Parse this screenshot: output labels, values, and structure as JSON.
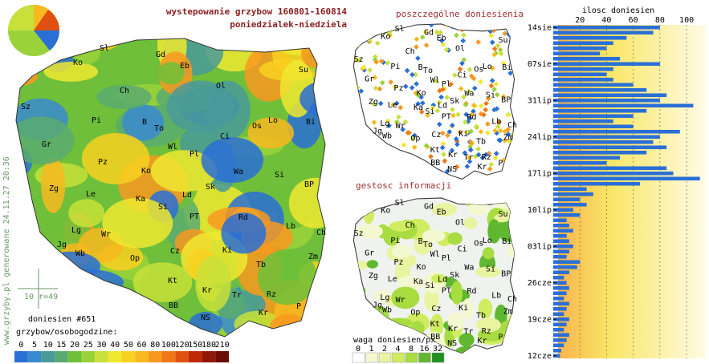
{
  "title": [
    "wystepowanie grzybow 160801-160814",
    "poniedzialek-niedziela"
  ],
  "panel_titles": {
    "points": "poszczególne doniesienia",
    "density": "gestosc informacji"
  },
  "map_labels": [
    "Sl",
    "Gd",
    "Ko",
    "Eb",
    "Ch",
    "Ol",
    "Su",
    "Sz",
    "Pi",
    "B",
    "To",
    "Lo",
    "Bi",
    "Gr",
    "Wl",
    "Pl",
    "Ci",
    "Os",
    "Pz",
    "Ko",
    "Wa",
    "Si",
    "Zg",
    "Le",
    "Ka",
    "Ld",
    "Sk",
    "BP",
    "Si",
    "PT",
    "Rd",
    "Lb",
    "Lg",
    "Wr",
    "Ch",
    "Jg",
    "Wb",
    "Op",
    "Cz",
    "Ki",
    "Zm",
    "Tb",
    "Kt",
    "Kr",
    "Tr",
    "Rz",
    "P",
    "BB",
    "NS",
    "Kr"
  ],
  "report_count": "doniesien #651",
  "scale_bar": "10 r=49",
  "side_text": "www.grzyby.pl generowane 24.11.27 20:36",
  "scale_title": "grzybow/osobogodzine:",
  "scale": [
    0,
    5,
    10,
    15,
    20,
    25,
    30,
    40,
    50,
    60,
    80,
    100,
    120,
    150,
    180,
    210
  ],
  "scale_colors": [
    "#2a6fd6",
    "#3a8ad0",
    "#4a9a9a",
    "#5aaa70",
    "#6fbf3a",
    "#9ad23a",
    "#c8e03a",
    "#f0e830",
    "#f8d020",
    "#f8b820",
    "#f89820",
    "#f07818",
    "#e05010",
    "#c02808",
    "#901808",
    "#6a0c04"
  ],
  "density_legend_title": "waga doniesien/px",
  "density_scale": [
    0,
    1,
    2,
    4,
    8,
    16,
    32
  ],
  "density_colors": [
    "#ffffff",
    "#f4f8d0",
    "#e8f4a0",
    "#d0ec60",
    "#a8dc40",
    "#60b830",
    "#209020"
  ],
  "chart_data": {
    "type": "bar",
    "orientation": "horizontal",
    "title": "ilosc doniesien",
    "categories": [
      "12cze",
      null,
      null,
      null,
      null,
      null,
      null,
      "19cze",
      null,
      null,
      null,
      null,
      null,
      null,
      "26cze",
      null,
      null,
      null,
      null,
      null,
      null,
      "03lip",
      null,
      null,
      null,
      null,
      null,
      null,
      "10lip",
      null,
      null,
      null,
      null,
      null,
      null,
      "17lip",
      null,
      null,
      null,
      null,
      null,
      null,
      "24lip",
      null,
      null,
      null,
      null,
      null,
      null,
      "31lip",
      null,
      null,
      null,
      null,
      null,
      null,
      "07sie",
      null,
      null,
      null,
      null,
      null,
      null,
      "14sie"
    ],
    "values": [
      5,
      6,
      8,
      10,
      12,
      8,
      10,
      12,
      8,
      10,
      12,
      8,
      10,
      12,
      10,
      8,
      12,
      18,
      20,
      10,
      12,
      15,
      12,
      10,
      15,
      12,
      10,
      20,
      15,
      25,
      20,
      30,
      25,
      65,
      110,
      90,
      85,
      40,
      50,
      70,
      85,
      75,
      80,
      95,
      60,
      45,
      60,
      70,
      105,
      80,
      85,
      70,
      60,
      45,
      40,
      45,
      80,
      50,
      35,
      40,
      45,
      55,
      75,
      80
    ],
    "color": "#2a6fd6",
    "xlim": [
      0,
      115
    ],
    "xticks": [
      20,
      40,
      60,
      80,
      100
    ],
    "grid": true
  }
}
